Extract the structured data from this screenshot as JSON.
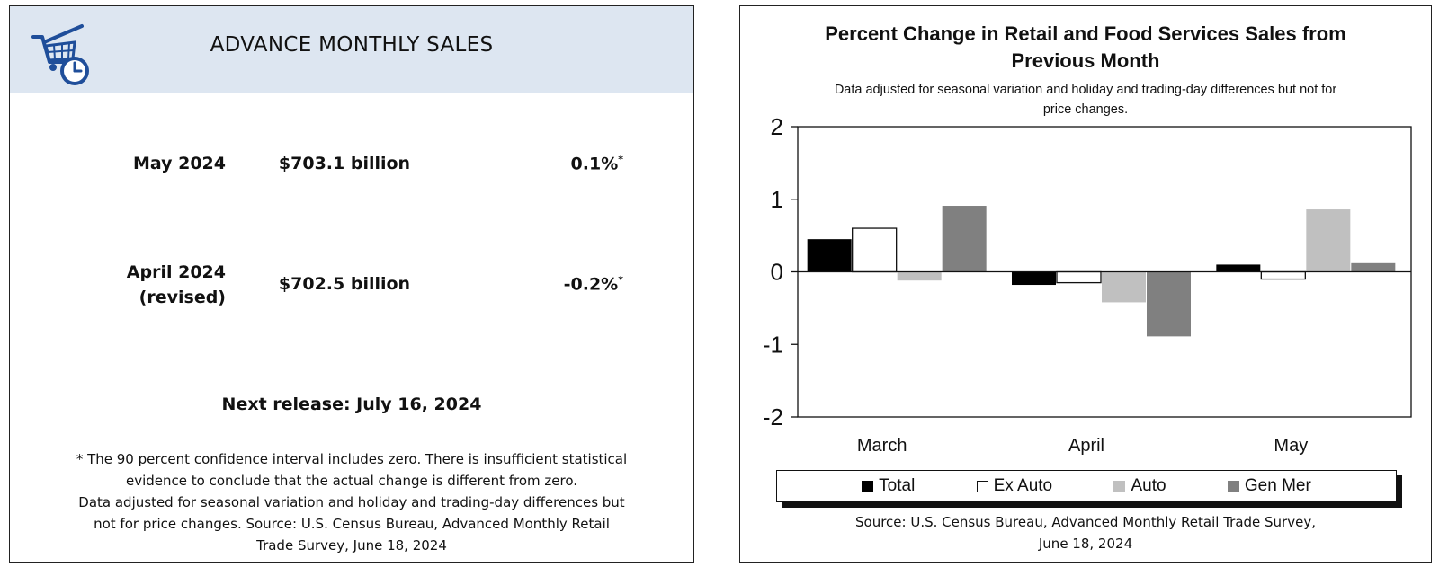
{
  "summary": {
    "title": "ADVANCE MONTHLY SALES",
    "rows": [
      {
        "label_line1": "May 2024",
        "label_line2": "",
        "value": "$703.1 billion",
        "change": "0.1%",
        "marker": "*"
      },
      {
        "label_line1": "April 2024",
        "label_line2": "(revised)",
        "value": "$702.5 billion",
        "change": "-0.2%",
        "marker": "*"
      }
    ],
    "next_release": "Next release: July 16, 2024",
    "footnote_lines": [
      "* The 90 percent confidence interval includes zero. There is insufficient statistical",
      "evidence to conclude that the actual change is different from zero.",
      "Data adjusted for seasonal variation and holiday and trading-day differences but",
      "not for price changes. Source: U.S. Census Bureau, Advanced Monthly Retail",
      "Trade Survey, June 18, 2024"
    ]
  },
  "chart_data": {
    "type": "bar",
    "title_line1": "Percent Change in Retail and Food Services Sales from",
    "title_line2": "Previous Month",
    "subtitle_line1": "Data adjusted for seasonal variation and holiday and trading-day differences but not for",
    "subtitle_line2": "price changes.",
    "categories": [
      "March",
      "April",
      "May"
    ],
    "series": [
      {
        "name": "Total",
        "color": "#000000",
        "values": [
          0.45,
          -0.18,
          0.1
        ]
      },
      {
        "name": "Ex Auto",
        "color": "#ffffff",
        "values": [
          0.6,
          -0.15,
          -0.1
        ]
      },
      {
        "name": "Auto",
        "color": "#c0c0c0",
        "values": [
          -0.12,
          -0.42,
          0.86
        ]
      },
      {
        "name": "Gen Mer",
        "color": "#808080",
        "values": [
          0.91,
          -0.89,
          0.12
        ]
      }
    ],
    "ylim": [
      -2,
      2
    ],
    "yticks": [
      "2",
      "1",
      "0",
      "-1",
      "-2"
    ],
    "legend_position": "bottom",
    "grid": false,
    "source_line1": "Source: U.S. Census Bureau, Advanced Monthly Retail Trade Survey,",
    "source_line2": "June 18, 2024"
  }
}
